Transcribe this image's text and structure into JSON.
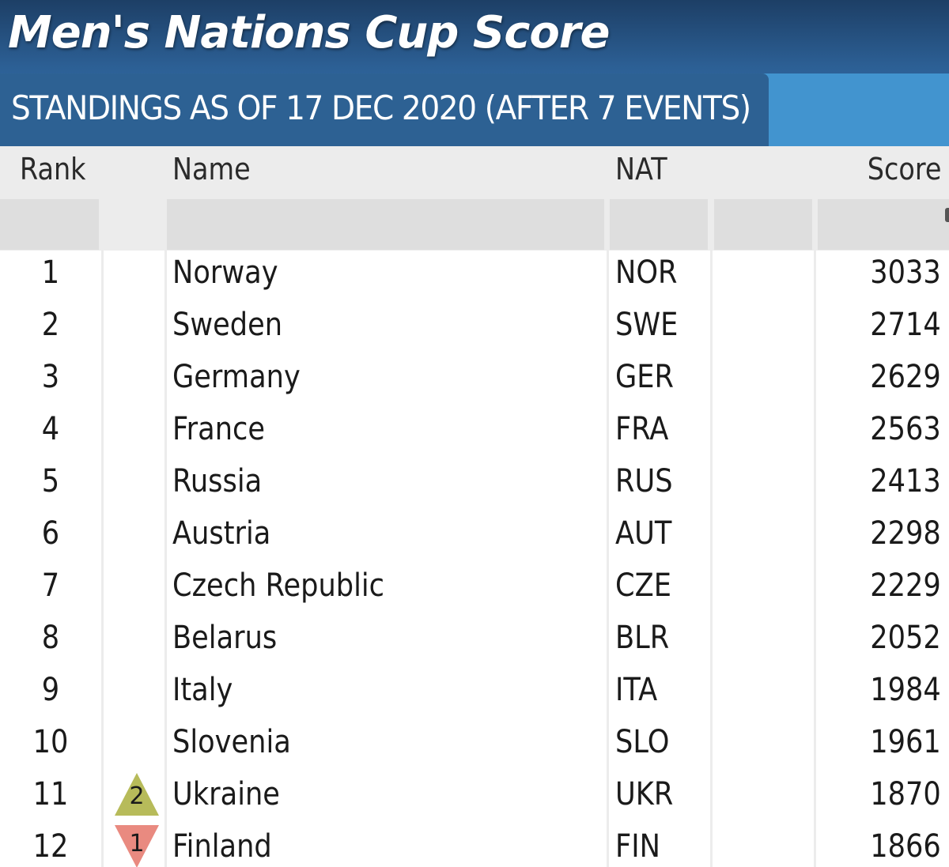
{
  "banner": {
    "title": "Men's Nations Cup Score",
    "subtitle": "STANDINGS AS OF 17 DEC 2020 (AFTER 7 EVENTS)"
  },
  "table": {
    "columns": {
      "rank": "Rank",
      "name": "Name",
      "nat": "NAT",
      "score": "Score"
    },
    "rows": [
      {
        "rank": "1",
        "name": "Norway",
        "nat": "NOR",
        "score": "3033",
        "move": "",
        "move_dir": ""
      },
      {
        "rank": "2",
        "name": "Sweden",
        "nat": "SWE",
        "score": "2714",
        "move": "",
        "move_dir": ""
      },
      {
        "rank": "3",
        "name": "Germany",
        "nat": "GER",
        "score": "2629",
        "move": "",
        "move_dir": ""
      },
      {
        "rank": "4",
        "name": "France",
        "nat": "FRA",
        "score": "2563",
        "move": "",
        "move_dir": ""
      },
      {
        "rank": "5",
        "name": "Russia",
        "nat": "RUS",
        "score": "2413",
        "move": "",
        "move_dir": ""
      },
      {
        "rank": "6",
        "name": "Austria",
        "nat": "AUT",
        "score": "2298",
        "move": "",
        "move_dir": ""
      },
      {
        "rank": "7",
        "name": "Czech Republic",
        "nat": "CZE",
        "score": "2229",
        "move": "",
        "move_dir": ""
      },
      {
        "rank": "8",
        "name": "Belarus",
        "nat": "BLR",
        "score": "2052",
        "move": "",
        "move_dir": ""
      },
      {
        "rank": "9",
        "name": "Italy",
        "nat": "ITA",
        "score": "1984",
        "move": "",
        "move_dir": ""
      },
      {
        "rank": "10",
        "name": "Slovenia",
        "nat": "SLO",
        "score": "1961",
        "move": "",
        "move_dir": ""
      },
      {
        "rank": "11",
        "name": "Ukraine",
        "nat": "UKR",
        "score": "1870",
        "move": "2",
        "move_dir": "up"
      },
      {
        "rank": "12",
        "name": "Finland",
        "nat": "FIN",
        "score": "1866",
        "move": "1",
        "move_dir": "down"
      }
    ]
  },
  "colors": {
    "move_up": "#b7bb5a",
    "move_down": "#e98a80"
  },
  "icons": {
    "move_up": "triangle-up-icon",
    "move_down": "triangle-down-icon"
  }
}
